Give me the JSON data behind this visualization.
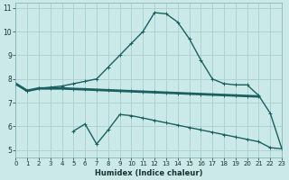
{
  "title": "",
  "xlabel": "Humidex (Indice chaleur)",
  "x": [
    0,
    1,
    2,
    3,
    4,
    5,
    6,
    7,
    8,
    9,
    10,
    11,
    12,
    13,
    14,
    15,
    16,
    17,
    18,
    19,
    20,
    21,
    22,
    23
  ],
  "line_upper": [
    7.8,
    7.5,
    7.6,
    7.65,
    7.7,
    7.8,
    7.9,
    8.0,
    8.5,
    9.0,
    9.5,
    10.0,
    10.8,
    10.75,
    10.4,
    9.7,
    8.8,
    8.0,
    7.8,
    7.75,
    7.75,
    7.3,
    6.55,
    5.05
  ],
  "line_mid": [
    7.8,
    7.5,
    7.6,
    7.6,
    7.6,
    7.58,
    7.56,
    7.54,
    7.52,
    7.5,
    7.48,
    7.46,
    7.44,
    7.42,
    7.4,
    7.38,
    7.36,
    7.34,
    7.32,
    7.3,
    7.28,
    7.26,
    null,
    null
  ],
  "line_lower": [
    7.8,
    null,
    null,
    null,
    null,
    5.8,
    6.1,
    5.25,
    5.85,
    6.5,
    6.45,
    6.35,
    6.25,
    6.15,
    6.05,
    5.95,
    5.85,
    5.75,
    5.65,
    5.55,
    5.45,
    5.35,
    5.1,
    5.05
  ],
  "bg_color": "#cce9e9",
  "grid_color": "#aacfcf",
  "line_color": "#1a6060",
  "xlim": [
    0,
    23
  ],
  "ylim": [
    4.7,
    11.2
  ],
  "yticks": [
    5,
    6,
    7,
    8,
    9,
    10,
    11
  ],
  "xtick_fontsize": 5.0,
  "ytick_fontsize": 5.5,
  "xlabel_fontsize": 6.0,
  "line_upper_lw": 1.0,
  "line_mid_lw": 2.0,
  "line_lower_lw": 1.0,
  "marker_size": 2.5,
  "marker_ew": 0.7
}
